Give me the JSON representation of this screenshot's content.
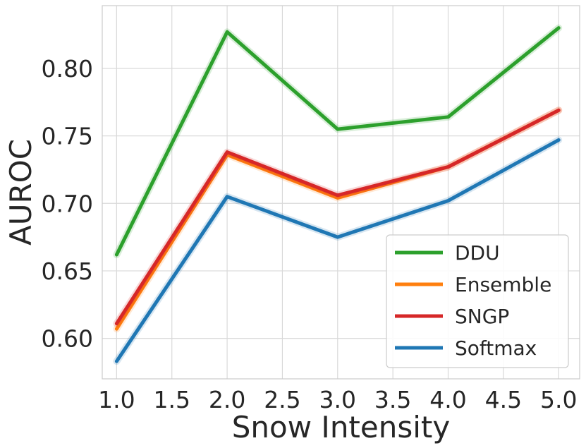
{
  "chart_data": {
    "type": "line",
    "xlabel": "Snow Intensity",
    "ylabel": "AUROC",
    "xlim": [
      0.87,
      5.19
    ],
    "ylim": [
      0.57,
      0.8465
    ],
    "x_ticks": [
      "1.0",
      "1.5",
      "2.0",
      "2.5",
      "3.0",
      "3.5",
      "4.0",
      "4.5",
      "5.0"
    ],
    "y_ticks": [
      "0.60",
      "0.65",
      "0.70",
      "0.75",
      "0.80"
    ],
    "grid": true,
    "legend_position": "lower-right",
    "x": [
      1.0,
      2.0,
      3.0,
      4.0,
      5.0
    ],
    "series": [
      {
        "name": "DDU",
        "color": "#2ca02c",
        "values": [
          0.662,
          0.827,
          0.755,
          0.764,
          0.83
        ]
      },
      {
        "name": "Ensemble",
        "color": "#ff7f0e",
        "values": [
          0.607,
          0.736,
          0.704,
          0.727,
          0.769
        ]
      },
      {
        "name": "SNGP",
        "color": "#d62728",
        "values": [
          0.611,
          0.738,
          0.706,
          0.727,
          0.769
        ]
      },
      {
        "name": "Softmax",
        "color": "#1f77b4",
        "values": [
          0.583,
          0.705,
          0.675,
          0.702,
          0.747
        ]
      }
    ],
    "legend_order": [
      "DDU",
      "Ensemble",
      "SNGP",
      "Softmax"
    ]
  }
}
